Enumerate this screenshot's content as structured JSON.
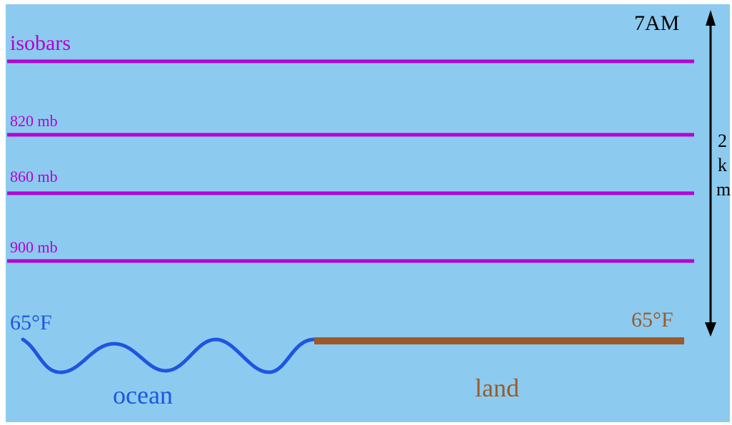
{
  "title": "isobars",
  "time_label": "7AM",
  "height_label": [
    "2",
    "k",
    "m"
  ],
  "isobars": [
    {
      "label": ""
    },
    {
      "label": "820 mb"
    },
    {
      "label": "860 mb"
    },
    {
      "label": "900 mb"
    }
  ],
  "ocean": {
    "label": "ocean",
    "temperature": "65°F"
  },
  "land": {
    "label": "land",
    "temperature": "65°F"
  },
  "colors": {
    "background": "#8ccbef",
    "isobar": "#b400d6",
    "ocean": "#1f55e0",
    "land": "#9a5a2a",
    "arrow": "#000000"
  }
}
